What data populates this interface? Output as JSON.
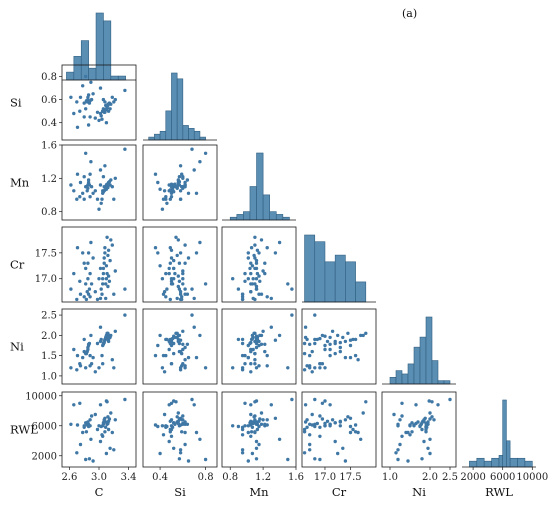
{
  "figure": {
    "panel_label": "(a)"
  },
  "chart_data": {
    "type": "pairplot",
    "variables": [
      {
        "name": "C",
        "label": "C",
        "range": [
          2.5,
          3.5
        ],
        "ticks": [
          2.6,
          3.0,
          3.4
        ],
        "tick_labels": [
          "2.6",
          "3.0",
          "3.4"
        ]
      },
      {
        "name": "Si",
        "label": "Si",
        "range": [
          0.25,
          0.9
        ],
        "ticks": [
          0.4,
          0.6,
          0.8
        ],
        "tick_labels": [
          "0.4",
          "0.6",
          "0.8"
        ]
      },
      {
        "name": "Mn",
        "label": "Mn",
        "range": [
          0.7,
          1.6
        ],
        "ticks": [
          0.8,
          1.2,
          1.6
        ],
        "tick_labels": [
          "0.8",
          "1.2",
          "1.6"
        ]
      },
      {
        "name": "Cr",
        "label": "Cr",
        "range": [
          16.55,
          18.0
        ],
        "ticks": [
          17.0,
          17.5
        ],
        "tick_labels": [
          "17.0",
          "17.5"
        ]
      },
      {
        "name": "Ni",
        "label": "Ni",
        "range": [
          0.8,
          2.65
        ],
        "ticks": [
          1.0,
          1.5,
          2.0,
          2.5
        ],
        "tick_labels": [
          "1.0",
          "1.5",
          "2.0",
          "2.5"
        ]
      },
      {
        "name": "RWL",
        "label": "RWL",
        "range": [
          500,
          10500
        ],
        "ticks": [
          2000,
          6000,
          10000
        ],
        "tick_labels": [
          "2000",
          "6000",
          "10000"
        ]
      }
    ],
    "x_tick_labels": {
      "C": [
        "2.6",
        "3.0",
        "3.4"
      ],
      "Si": [
        "0.4",
        "0.8"
      ],
      "Mn": [
        "0.8",
        "1.2",
        "1.6"
      ],
      "Cr": [
        "17.0",
        "17.5"
      ],
      "Ni": [
        "1.0",
        "2.0",
        "2.5"
      ],
      "RWL": [
        "2000",
        "6000",
        "10000"
      ]
    },
    "y_tick_labels": {
      "Si": [
        "0.8",
        "0.6",
        "0.4"
      ],
      "Mn": [
        "1.6",
        "1.2",
        "0.8"
      ],
      "Cr": [
        "17.5",
        "17.0"
      ],
      "Ni": [
        "2.5",
        "2.0",
        "1.5",
        "1.0"
      ],
      "RWL": [
        "10000",
        "6000",
        "2000"
      ]
    },
    "histograms": {
      "C": [
        {
          "x0": 2.56,
          "x1": 2.66,
          "count": 2
        },
        {
          "x0": 2.66,
          "x1": 2.76,
          "count": 6
        },
        {
          "x0": 2.76,
          "x1": 2.86,
          "count": 10
        },
        {
          "x0": 2.86,
          "x1": 2.96,
          "count": 3
        },
        {
          "x0": 2.96,
          "x1": 3.06,
          "count": 17
        },
        {
          "x0": 3.06,
          "x1": 3.16,
          "count": 15
        },
        {
          "x0": 3.16,
          "x1": 3.26,
          "count": 1
        },
        {
          "x0": 3.26,
          "x1": 3.36,
          "count": 1
        }
      ],
      "Si": [
        {
          "x0": 0.3,
          "x1": 0.35,
          "count": 1
        },
        {
          "x0": 0.35,
          "x1": 0.4,
          "count": 2
        },
        {
          "x0": 0.4,
          "x1": 0.45,
          "count": 3
        },
        {
          "x0": 0.45,
          "x1": 0.5,
          "count": 10
        },
        {
          "x0": 0.5,
          "x1": 0.55,
          "count": 23
        },
        {
          "x0": 0.55,
          "x1": 0.6,
          "count": 21
        },
        {
          "x0": 0.6,
          "x1": 0.65,
          "count": 5
        },
        {
          "x0": 0.65,
          "x1": 0.7,
          "count": 4
        },
        {
          "x0": 0.7,
          "x1": 0.75,
          "count": 3
        },
        {
          "x0": 0.75,
          "x1": 0.8,
          "count": 1
        }
      ],
      "Mn": [
        {
          "x0": 0.8,
          "x1": 0.88,
          "count": 1
        },
        {
          "x0": 0.88,
          "x1": 0.96,
          "count": 2
        },
        {
          "x0": 0.96,
          "x1": 1.04,
          "count": 3
        },
        {
          "x0": 1.04,
          "x1": 1.12,
          "count": 12
        },
        {
          "x0": 1.12,
          "x1": 1.2,
          "count": 24
        },
        {
          "x0": 1.2,
          "x1": 1.28,
          "count": 9
        },
        {
          "x0": 1.28,
          "x1": 1.36,
          "count": 3
        },
        {
          "x0": 1.36,
          "x1": 1.44,
          "count": 2
        },
        {
          "x0": 1.44,
          "x1": 1.52,
          "count": 1
        }
      ],
      "Cr": [
        {
          "x0": 16.6,
          "x1": 16.8,
          "count": 10
        },
        {
          "x0": 16.8,
          "x1": 17.0,
          "count": 9
        },
        {
          "x0": 17.0,
          "x1": 17.2,
          "count": 6
        },
        {
          "x0": 17.2,
          "x1": 17.4,
          "count": 7
        },
        {
          "x0": 17.4,
          "x1": 17.6,
          "count": 6
        },
        {
          "x0": 17.6,
          "x1": 17.8,
          "count": 3
        }
      ],
      "Ni": [
        {
          "x0": 1.0,
          "x1": 1.15,
          "count": 2
        },
        {
          "x0": 1.15,
          "x1": 1.3,
          "count": 4
        },
        {
          "x0": 1.3,
          "x1": 1.45,
          "count": 3
        },
        {
          "x0": 1.45,
          "x1": 1.6,
          "count": 6
        },
        {
          "x0": 1.6,
          "x1": 1.75,
          "count": 11
        },
        {
          "x0": 1.75,
          "x1": 1.9,
          "count": 14
        },
        {
          "x0": 1.9,
          "x1": 2.05,
          "count": 20
        },
        {
          "x0": 2.05,
          "x1": 2.2,
          "count": 7
        },
        {
          "x0": 2.2,
          "x1": 2.35,
          "count": 1
        },
        {
          "x0": 2.35,
          "x1": 2.5,
          "count": 1
        }
      ],
      "RWL": [
        {
          "x0": 1500,
          "x1": 2500,
          "count": 2
        },
        {
          "x0": 2500,
          "x1": 3500,
          "count": 3
        },
        {
          "x0": 3500,
          "x1": 4500,
          "count": 2
        },
        {
          "x0": 4500,
          "x1": 5500,
          "count": 3
        },
        {
          "x0": 5500,
          "x1": 6000,
          "count": 4
        },
        {
          "x0": 6000,
          "x1": 6500,
          "count": 23
        },
        {
          "x0": 6500,
          "x1": 7000,
          "count": 9
        },
        {
          "x0": 7000,
          "x1": 8000,
          "count": 3
        },
        {
          "x0": 8000,
          "x1": 9000,
          "count": 3
        },
        {
          "x0": 9000,
          "x1": 10000,
          "count": 2
        }
      ]
    },
    "points": {
      "C": [
        2.62,
        2.66,
        2.7,
        2.71,
        2.74,
        2.75,
        2.78,
        2.8,
        2.8,
        2.82,
        2.82,
        2.83,
        2.84,
        2.85,
        2.85,
        2.86,
        2.86,
        2.87,
        2.88,
        2.88,
        2.89,
        2.9,
        2.92,
        2.95,
        2.98,
        3.0,
        3.02,
        3.02,
        3.03,
        3.04,
        3.05,
        3.05,
        3.06,
        3.06,
        3.07,
        3.07,
        3.08,
        3.08,
        3.09,
        3.09,
        3.1,
        3.1,
        3.11,
        3.11,
        3.12,
        3.12,
        3.13,
        3.13,
        3.14,
        3.15,
        3.16,
        3.18,
        3.2,
        3.22,
        3.35
      ],
      "Si": [
        0.62,
        0.48,
        0.58,
        0.36,
        0.5,
        0.62,
        0.72,
        0.45,
        0.57,
        0.52,
        0.8,
        0.59,
        0.58,
        0.6,
        0.62,
        0.38,
        0.64,
        0.57,
        0.45,
        0.59,
        0.75,
        0.6,
        0.65,
        0.44,
        0.49,
        0.42,
        0.7,
        0.48,
        0.46,
        0.43,
        0.5,
        0.5,
        0.6,
        0.52,
        0.49,
        0.5,
        0.58,
        0.49,
        0.51,
        0.55,
        0.52,
        0.4,
        0.53,
        0.54,
        0.56,
        0.55,
        0.56,
        0.5,
        0.57,
        0.52,
        0.56,
        0.62,
        0.58,
        0.6,
        0.68
      ],
      "Mn": [
        1.12,
        1.05,
        0.95,
        1.25,
        0.98,
        1.15,
        1.02,
        0.95,
        1.22,
        1.1,
        1.5,
        1.1,
        1.05,
        1.08,
        1.12,
        1.15,
        1.18,
        1.12,
        0.98,
        1.25,
        1.4,
        1.1,
        1.02,
        1.05,
        0.95,
        0.83,
        1.3,
        1.12,
        0.9,
        0.95,
        1.05,
        1.02,
        1.22,
        1.04,
        1.05,
        1.1,
        1.35,
        1.06,
        1.07,
        1.08,
        1.12,
        1.07,
        1.13,
        1.1,
        1.12,
        1.09,
        1.15,
        1.13,
        1.16,
        1.12,
        1.18,
        1.1,
        0.95,
        1.2,
        1.55
      ],
      "Cr": [
        16.8,
        17.1,
        16.6,
        17.6,
        16.95,
        16.7,
        17.5,
        16.65,
        17.3,
        17.2,
        16.9,
        16.6,
        16.75,
        17.0,
        17.3,
        17.5,
        16.7,
        16.8,
        17.1,
        16.65,
        17.7,
        16.9,
        17.4,
        16.75,
        16.6,
        17.0,
        16.62,
        17.2,
        16.8,
        16.7,
        16.9,
        17.0,
        17.1,
        17.2,
        17.3,
        17.4,
        17.5,
        17.6,
        16.9,
        16.62,
        17.0,
        17.25,
        17.1,
        17.8,
        16.85,
        17.45,
        17.05,
        17.55,
        16.95,
        17.35,
        17.75,
        17.65,
        16.7,
        17.15,
        16.8
      ],
      "Ni": [
        1.2,
        1.65,
        1.15,
        1.5,
        1.3,
        1.25,
        1.45,
        1.9,
        1.6,
        1.55,
        1.2,
        1.55,
        1.6,
        1.65,
        1.7,
        1.75,
        1.78,
        1.8,
        1.5,
        1.25,
        2.0,
        1.3,
        1.45,
        1.1,
        1.8,
        1.2,
        2.2,
        1.85,
        1.9,
        1.5,
        1.3,
        1.75,
        1.78,
        1.8,
        1.82,
        1.85,
        1.88,
        1.9,
        1.92,
        1.95,
        1.98,
        2.0,
        1.95,
        2.05,
        1.9,
        2.05,
        1.85,
        1.9,
        2.0,
        1.95,
        2.0,
        1.4,
        1.2,
        2.1,
        2.5
      ],
      "RWL": [
        6200,
        8800,
        2400,
        6100,
        9000,
        3500,
        5100,
        5800,
        6000,
        6400,
        1500,
        5200,
        6100,
        6300,
        6500,
        5900,
        6200,
        1600,
        6000,
        6800,
        4200,
        7300,
        1300,
        7500,
        5500,
        6000,
        8800,
        3900,
        5900,
        4800,
        4600,
        6000,
        6200,
        6400,
        6600,
        6800,
        7000,
        5200,
        5800,
        6500,
        9300,
        2300,
        6200,
        9200,
        6300,
        7200,
        6600,
        5500,
        6900,
        3000,
        7700,
        5100,
        2800,
        6800,
        9500
      ]
    }
  }
}
